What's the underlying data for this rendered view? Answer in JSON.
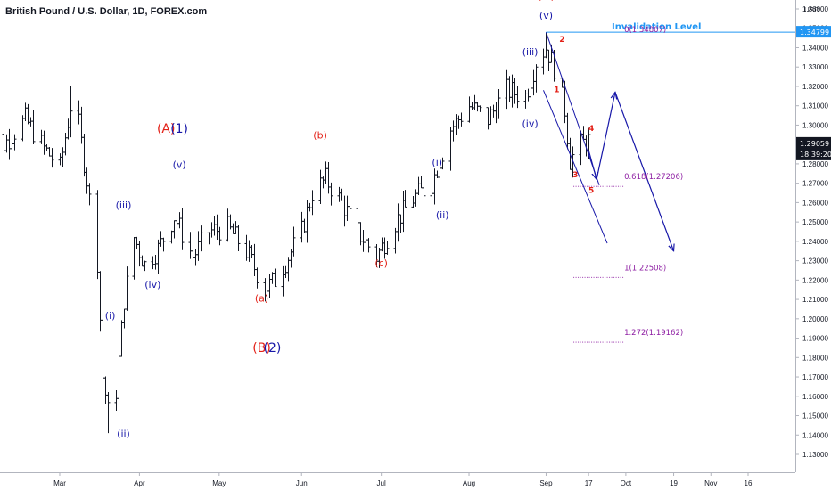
{
  "header": {
    "title": "British Pound / U.S. Dollar, 1D, FOREX.com"
  },
  "price_axis": {
    "currency": "USD",
    "last_price": "1.29059",
    "countdown": "18:39:20",
    "invalidation_price": "1.34799"
  },
  "colors": {
    "red": "#e32118",
    "blue": "#1717a8",
    "purple": "#8e1fa3",
    "line_blue": "#2196f3",
    "bar": "#131722",
    "price_badge_bg": "#131722",
    "invalidation_badge_bg": "#2196f3"
  },
  "chart_data": {
    "type": "ohlc",
    "ylim": [
      1.123,
      1.368
    ],
    "y_ticks": [
      "1.36000",
      "1.35000",
      "1.34000",
      "1.33000",
      "1.32000",
      "1.31000",
      "1.30000",
      "1.29000",
      "1.28000",
      "1.27000",
      "1.26000",
      "1.25000",
      "1.24000",
      "1.23000",
      "1.22000",
      "1.21000",
      "1.20000",
      "1.19000",
      "1.18000",
      "1.17000",
      "1.16000",
      "1.15000",
      "1.14000",
      "1.13000"
    ],
    "y_tick_values": [
      1.36,
      1.35,
      1.34,
      1.33,
      1.32,
      1.31,
      1.3,
      1.29,
      1.28,
      1.27,
      1.26,
      1.25,
      1.24,
      1.23,
      1.22,
      1.21,
      1.2,
      1.19,
      1.18,
      1.17,
      1.16,
      1.15,
      1.14,
      1.13
    ],
    "x_ticks": [
      {
        "label": "Mar",
        "date": "2020-03-02"
      },
      {
        "label": "Apr",
        "date": "2020-04-01"
      },
      {
        "label": "May",
        "date": "2020-05-01"
      },
      {
        "label": "Jun",
        "date": "2020-06-01"
      },
      {
        "label": "Jul",
        "date": "2020-07-01"
      },
      {
        "label": "Aug",
        "date": "2020-08-03"
      },
      {
        "label": "Sep",
        "date": "2020-09-01"
      },
      {
        "label": "17",
        "date": "2020-09-17"
      },
      {
        "label": "Oct",
        "date": "2020-10-01"
      },
      {
        "label": "19",
        "date": "2020-10-19"
      },
      {
        "label": "Nov",
        "date": "2020-11-02"
      },
      {
        "label": "16",
        "date": "2020-11-16"
      }
    ],
    "price_path": [
      [
        "2020-02-03",
        1.298
      ],
      [
        "2020-02-10",
        1.29
      ],
      [
        "2020-02-18",
        1.303
      ],
      [
        "2020-02-25",
        1.288
      ],
      [
        "2020-03-02",
        1.278
      ],
      [
        "2020-03-06",
        1.31
      ],
      [
        "2020-03-09",
        1.3
      ],
      [
        "2020-03-12",
        1.272
      ],
      [
        "2020-03-16",
        1.23
      ],
      [
        "2020-03-18",
        1.17
      ],
      [
        "2020-03-20",
        1.152
      ],
      [
        "2020-03-23",
        1.163
      ],
      [
        "2020-03-26",
        1.21
      ],
      [
        "2020-03-30",
        1.242
      ],
      [
        "2020-04-03",
        1.228
      ],
      [
        "2020-04-08",
        1.236
      ],
      [
        "2020-04-14",
        1.253
      ],
      [
        "2020-04-21",
        1.232
      ],
      [
        "2020-04-27",
        1.245
      ],
      [
        "2020-05-04",
        1.247
      ],
      [
        "2020-05-11",
        1.235
      ],
      [
        "2020-05-18",
        1.215
      ],
      [
        "2020-05-22",
        1.22
      ],
      [
        "2020-05-27",
        1.232
      ],
      [
        "2020-06-01",
        1.245
      ],
      [
        "2020-06-05",
        1.265
      ],
      [
        "2020-06-10",
        1.272
      ],
      [
        "2020-06-16",
        1.26
      ],
      [
        "2020-06-22",
        1.245
      ],
      [
        "2020-06-29",
        1.232
      ],
      [
        "2020-07-06",
        1.25
      ],
      [
        "2020-07-13",
        1.262
      ],
      [
        "2020-07-20",
        1.27
      ],
      [
        "2020-07-27",
        1.298
      ],
      [
        "2020-08-03",
        1.31
      ],
      [
        "2020-08-10",
        1.303
      ],
      [
        "2020-08-17",
        1.318
      ],
      [
        "2020-08-24",
        1.315
      ],
      [
        "2020-08-28",
        1.333
      ],
      [
        "2020-09-01",
        1.34
      ],
      [
        "2020-09-04",
        1.33
      ],
      [
        "2020-09-08",
        1.308
      ],
      [
        "2020-09-10",
        1.282
      ],
      [
        "2020-09-14",
        1.29
      ],
      [
        "2020-09-17",
        1.292
      ]
    ],
    "price_highs_lows": [
      {
        "date": "2020-03-06",
        "high": 1.32
      },
      {
        "date": "2020-03-20",
        "low": 1.141
      },
      {
        "date": "2020-09-01",
        "high": 1.348
      }
    ],
    "elliott_labels": [
      {
        "text": "(C)",
        "date": "2020-09-01",
        "price": 1.365,
        "color": "red"
      },
      {
        "text": "(v)",
        "date": "2020-09-01",
        "price": 1.355,
        "color": "blue"
      },
      {
        "text": "(iii)",
        "date": "2020-08-26",
        "price": 1.336,
        "color": "blue"
      },
      {
        "text": "(iv)",
        "date": "2020-08-26",
        "price": 1.299,
        "color": "blue"
      },
      {
        "text": "(A)",
        "date": "2020-04-11",
        "price": 1.296,
        "color": "red"
      },
      {
        "text": "(1)",
        "date": "2020-04-16",
        "price": 1.296,
        "color": "blue"
      },
      {
        "text": "(v)",
        "date": "2020-04-16",
        "price": 1.278,
        "color": "blue"
      },
      {
        "text": "(iii)",
        "date": "2020-03-26",
        "price": 1.257,
        "color": "blue"
      },
      {
        "text": "(iv)",
        "date": "2020-04-06",
        "price": 1.216,
        "color": "blue"
      },
      {
        "text": "(i)",
        "date": "2020-03-21",
        "price": 1.2,
        "color": "blue"
      },
      {
        "text": "(ii)",
        "date": "2020-03-26",
        "price": 1.139,
        "color": "blue"
      },
      {
        "text": "(b)",
        "date": "2020-06-08",
        "price": 1.293,
        "color": "red"
      },
      {
        "text": "(a)",
        "date": "2020-05-17",
        "price": 1.209,
        "color": "red"
      },
      {
        "text": "(B)",
        "date": "2020-05-17",
        "price": 1.183,
        "color": "red"
      },
      {
        "text": "(2)",
        "date": "2020-05-21",
        "price": 1.183,
        "color": "blue"
      },
      {
        "text": "(c)",
        "date": "2020-07-01",
        "price": 1.227,
        "color": "red"
      },
      {
        "text": "(i)",
        "date": "2020-07-22",
        "price": 1.279,
        "color": "blue"
      },
      {
        "text": "(ii)",
        "date": "2020-07-24",
        "price": 1.252,
        "color": "blue"
      },
      {
        "text": "1",
        "date": "2020-09-05",
        "price": 1.317,
        "color": "red"
      },
      {
        "text": "2",
        "date": "2020-09-07",
        "price": 1.343,
        "color": "red"
      },
      {
        "text": "3",
        "date": "2020-09-12",
        "price": 1.273,
        "color": "red"
      },
      {
        "text": "4",
        "date": "2020-09-18",
        "price": 1.297,
        "color": "red"
      },
      {
        "text": "5",
        "date": "2020-09-18",
        "price": 1.265,
        "color": "red"
      }
    ],
    "invalidation": {
      "label": "Invalidation Level",
      "price": 1.348,
      "start_date": "2020-09-01"
    },
    "fib_levels": [
      {
        "label": "0(1.34807)",
        "price": 1.34807,
        "label_date": "2020-09-21"
      },
      {
        "label": "0.618(1.27206)",
        "price": 1.27206,
        "label_date": "2020-09-21"
      },
      {
        "label": "1(1.22508)",
        "price": 1.22508,
        "label_date": "2020-09-21"
      },
      {
        "label": "1.272(1.19162)",
        "price": 1.19162,
        "label_date": "2020-09-21"
      }
    ],
    "channel_lines": [
      [
        [
          "2020-09-01",
          1.348
        ],
        [
          "2020-09-21",
          1.269
        ]
      ],
      [
        [
          "2020-08-31",
          1.318
        ],
        [
          "2020-09-24",
          1.239
        ]
      ]
    ],
    "projection_path": [
      [
        "2020-09-17",
        1.287
      ],
      [
        "2020-09-20",
        1.272
      ],
      [
        "2020-09-27",
        1.317
      ],
      [
        "2020-10-19",
        1.235
      ]
    ]
  }
}
